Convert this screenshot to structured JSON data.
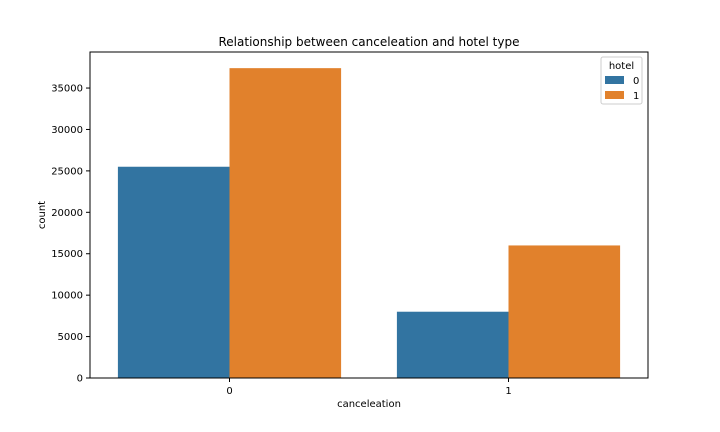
{
  "chart_data": {
    "type": "bar",
    "title": "Relationship between canceleation and hotel type",
    "xlabel": "canceleation",
    "ylabel": "count",
    "categories": [
      "0",
      "1"
    ],
    "series": [
      {
        "name": "0",
        "values": [
          25500,
          8000
        ],
        "color": "#3274a1"
      },
      {
        "name": "1",
        "values": [
          37400,
          16000
        ],
        "color": "#e1812c"
      }
    ],
    "ylim": [
      0,
      39350
    ],
    "yticks": [
      0,
      5000,
      10000,
      15000,
      20000,
      25000,
      30000,
      35000
    ],
    "grid": false,
    "legend": {
      "title": "hotel",
      "placement": "top-right"
    }
  }
}
